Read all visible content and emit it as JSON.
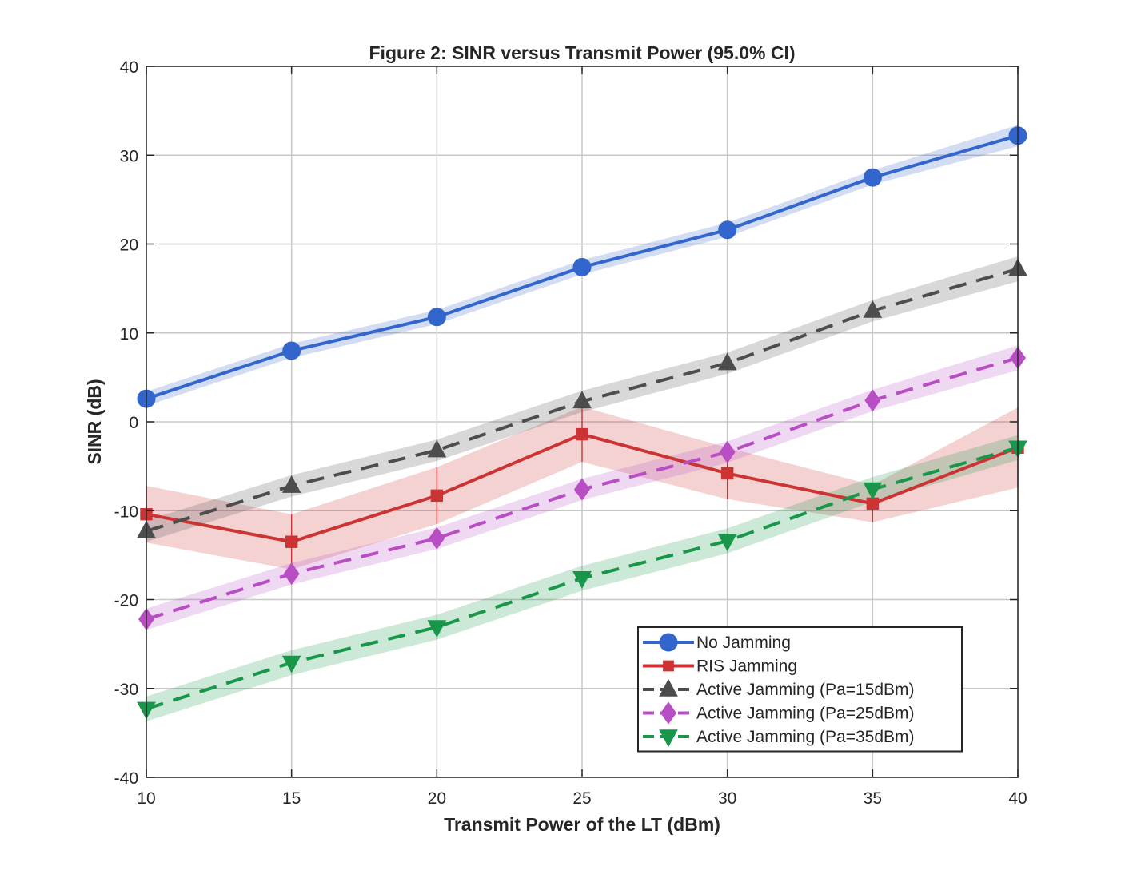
{
  "chart_data": {
    "type": "line",
    "title": "Figure 2: SINR versus Transmit Power (95.0% CI)",
    "xlabel": "Transmit Power of the LT (dBm)",
    "ylabel": "SINR (dB)",
    "xlim": [
      10,
      40
    ],
    "ylim": [
      -40,
      40
    ],
    "xticks": [
      10,
      15,
      20,
      25,
      30,
      35,
      40
    ],
    "yticks": [
      -40,
      -30,
      -20,
      -10,
      0,
      10,
      20,
      30,
      40
    ],
    "grid": true,
    "legend_position": "bottom-right",
    "x": [
      10,
      15,
      20,
      25,
      30,
      35,
      40
    ],
    "series": [
      {
        "name": "No Jamming",
        "color": "#3366cc",
        "dash": "solid",
        "marker": "circle",
        "values": [
          2.6,
          8.0,
          11.8,
          17.4,
          21.6,
          27.5,
          32.2
        ],
        "ci_lower": [
          1.8,
          7.2,
          11.0,
          16.6,
          20.8,
          26.7,
          31.0
        ],
        "ci_upper": [
          3.4,
          8.8,
          12.6,
          18.2,
          22.4,
          28.3,
          33.4
        ]
      },
      {
        "name": "RIS Jamming",
        "color": "#cc3333",
        "dash": "solid",
        "marker": "square",
        "values": [
          -10.4,
          -13.5,
          -8.3,
          -1.4,
          -5.8,
          -9.2,
          -2.9
        ],
        "ci_lower": [
          -13.6,
          -16.6,
          -11.5,
          -4.5,
          -8.7,
          -11.3,
          -7.4
        ],
        "ci_upper": [
          -7.2,
          -10.4,
          -5.1,
          1.7,
          -2.9,
          -7.1,
          1.6
        ]
      },
      {
        "name": "Active Jamming (Pa=15dBm)",
        "color": "#4d4d4d",
        "dash": "dashed",
        "marker": "triangle-up",
        "values": [
          -12.3,
          -7.2,
          -3.2,
          2.3,
          6.6,
          12.5,
          17.2
        ],
        "ci_lower": [
          -13.5,
          -8.4,
          -4.4,
          1.1,
          5.4,
          11.3,
          15.8
        ],
        "ci_upper": [
          -11.1,
          -6.0,
          -2.0,
          3.5,
          7.8,
          13.7,
          18.6
        ]
      },
      {
        "name": "Active Jamming (Pa=25dBm)",
        "color": "#b84dc4",
        "dash": "dashed",
        "marker": "diamond",
        "values": [
          -22.2,
          -17.1,
          -13.1,
          -7.6,
          -3.4,
          2.4,
          7.2
        ],
        "ci_lower": [
          -23.4,
          -18.3,
          -14.3,
          -8.8,
          -4.6,
          1.2,
          5.8
        ],
        "ci_upper": [
          -21.0,
          -15.9,
          -11.9,
          -6.4,
          -2.2,
          3.6,
          8.6
        ]
      },
      {
        "name": "Active Jamming (Pa=35dBm)",
        "color": "#18964a",
        "dash": "dashed",
        "marker": "triangle-down",
        "values": [
          -32.3,
          -27.1,
          -23.1,
          -17.6,
          -13.4,
          -7.6,
          -2.9
        ],
        "ci_lower": [
          -33.7,
          -28.5,
          -24.5,
          -19.0,
          -14.8,
          -9.0,
          -4.3
        ],
        "ci_upper": [
          -30.9,
          -25.7,
          -21.7,
          -16.2,
          -12.0,
          -6.2,
          -1.5
        ]
      }
    ]
  }
}
